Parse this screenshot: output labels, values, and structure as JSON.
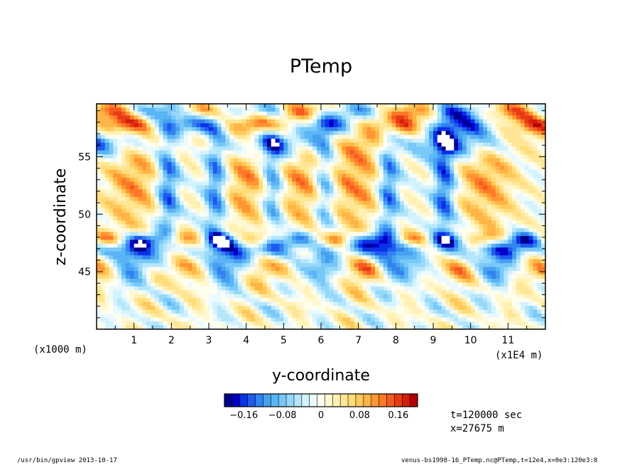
{
  "chart_data": {
    "type": "heatmap",
    "title": "PTemp",
    "xlabel": "y-coordinate",
    "ylabel": "z-coordinate",
    "x_unit_label": "(x1E4 m)",
    "y_unit_label": "(x1000 m)",
    "xlim": [
      0,
      12
    ],
    "ylim": [
      40,
      59.6
    ],
    "x_ticks": [
      1,
      2,
      3,
      4,
      5,
      6,
      7,
      8,
      9,
      10,
      11
    ],
    "x_tick_labels": [
      "1",
      "2",
      "3",
      "4",
      "5",
      "6",
      "7",
      "8",
      "9",
      "10",
      "11"
    ],
    "y_ticks": [
      45,
      50,
      55
    ],
    "y_tick_labels": [
      "45",
      "50",
      "55"
    ],
    "colorbar": {
      "range": [
        -0.2,
        0.2
      ],
      "tick_values": [
        -0.16,
        -0.08,
        0,
        0.08,
        0.16
      ],
      "tick_labels": [
        "−0.16",
        "−0.08",
        "0",
        "0.08",
        "0.16"
      ],
      "colors": [
        "#00008c",
        "#0000c8",
        "#0a32e6",
        "#1e5af0",
        "#3282f0",
        "#46a0f0",
        "#5ab4f5",
        "#78c8f8",
        "#96d8fa",
        "#b4e6fc",
        "#d2f2fd",
        "#ebfafe",
        "#fffff0",
        "#fff8d2",
        "#fff0b4",
        "#ffe696",
        "#ffdc78",
        "#ffc85a",
        "#ffb446",
        "#ff9632",
        "#ff7828",
        "#f55a1e",
        "#e63c14",
        "#d21e0a",
        "#b40000"
      ]
    }
  },
  "annotations": {
    "time": "t=120000 sec",
    "x_position": "x=27675 m"
  },
  "footer": {
    "left": "/usr/bin/gpview   2013-10-17",
    "right": "venus-bs1998-16_PTemp.nc@PTemp,t=12e4,x=0e3:120e3:8"
  }
}
